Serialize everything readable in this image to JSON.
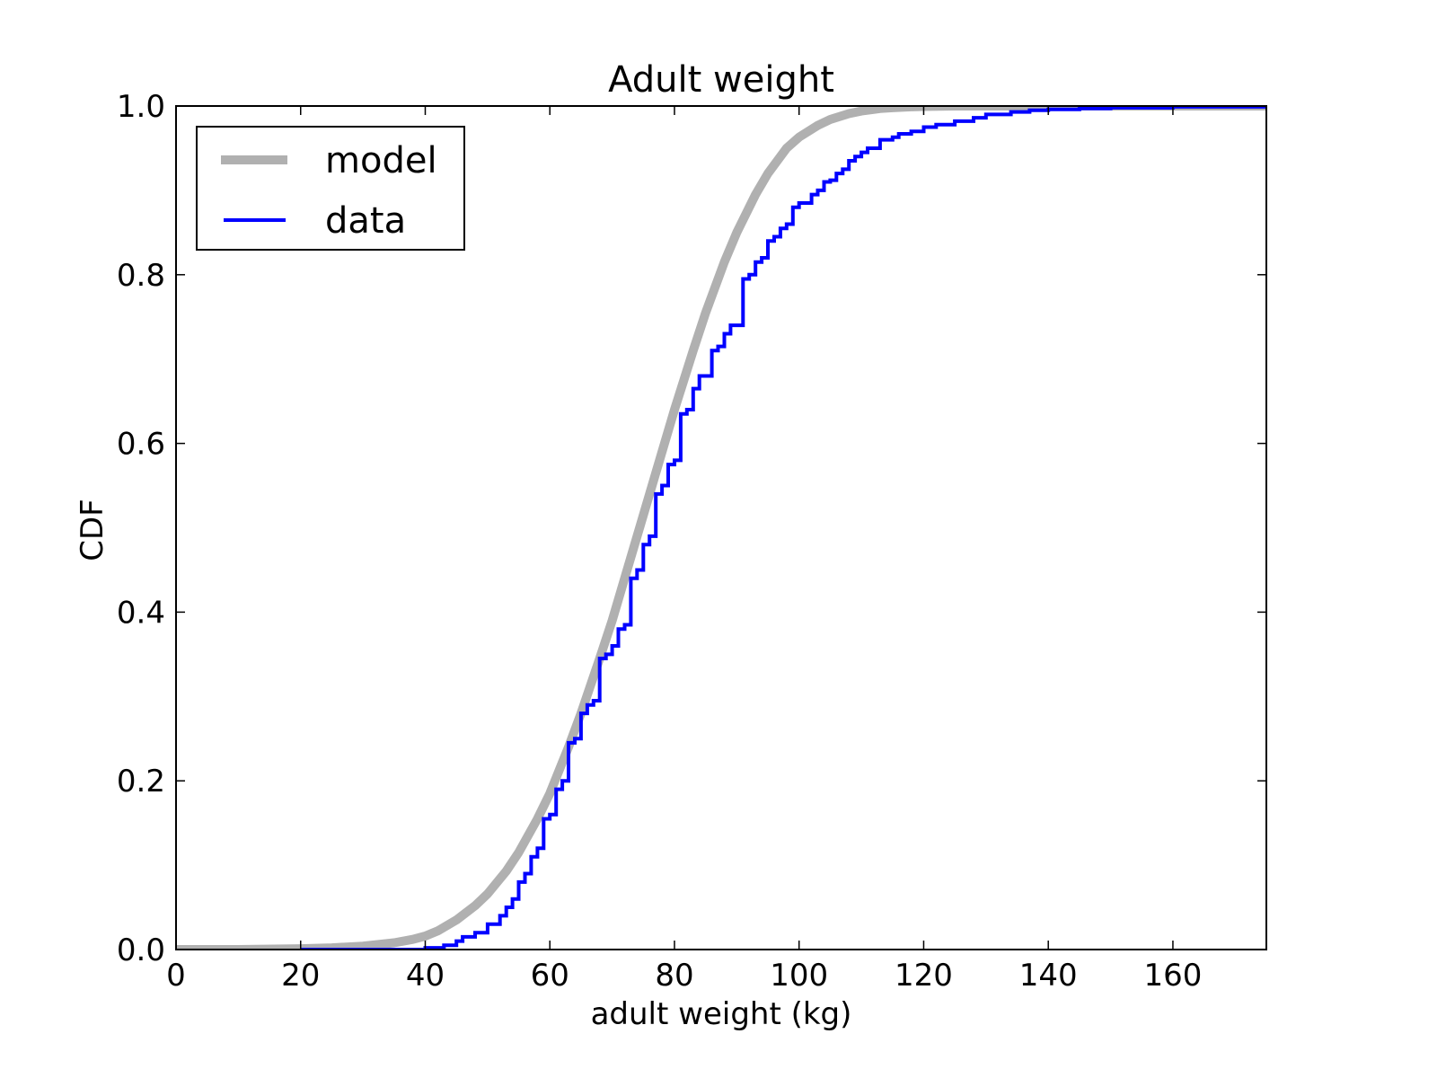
{
  "chart_data": {
    "type": "line",
    "title": "Adult weight",
    "xlabel": "adult weight (kg)",
    "ylabel": "CDF",
    "xlim": [
      0,
      175
    ],
    "ylim": [
      0.0,
      1.0
    ],
    "xticks": [
      0,
      20,
      40,
      60,
      80,
      100,
      120,
      140,
      160
    ],
    "xtick_labels": [
      "0",
      "20",
      "40",
      "60",
      "80",
      "100",
      "120",
      "140",
      "160"
    ],
    "yticks": [
      0.0,
      0.2,
      0.4,
      0.6,
      0.8,
      1.0
    ],
    "ytick_labels": [
      "0.0",
      "0.2",
      "0.4",
      "0.6",
      "0.8",
      "1.0"
    ],
    "grid": false,
    "legend_position": "upper left",
    "series": [
      {
        "name": "model",
        "color": "#b0b0b0",
        "linewidth": 10,
        "style": "smooth",
        "x": [
          0,
          10,
          20,
          25,
          30,
          35,
          38,
          40,
          42,
          45,
          48,
          50,
          53,
          55,
          58,
          60,
          63,
          65,
          68,
          70,
          73,
          75,
          78,
          80,
          83,
          85,
          88,
          90,
          93,
          95,
          98,
          100,
          103,
          105,
          108,
          110,
          113,
          115,
          118,
          120,
          125,
          130,
          140,
          150,
          175
        ],
        "y": [
          0.0,
          0.0,
          0.001,
          0.002,
          0.004,
          0.008,
          0.012,
          0.016,
          0.022,
          0.035,
          0.052,
          0.066,
          0.093,
          0.115,
          0.155,
          0.185,
          0.24,
          0.28,
          0.345,
          0.39,
          0.465,
          0.515,
          0.59,
          0.64,
          0.71,
          0.755,
          0.815,
          0.85,
          0.895,
          0.92,
          0.95,
          0.963,
          0.977,
          0.984,
          0.991,
          0.994,
          0.997,
          0.998,
          0.999,
          0.9995,
          1.0,
          1.0,
          1.0,
          1.0,
          1.0
        ]
      },
      {
        "name": "data",
        "color": "#0000ff",
        "linewidth": 4,
        "style": "step",
        "x": [
          20,
          40,
          43,
          45,
          46,
          48,
          50,
          52,
          53,
          54,
          55,
          56,
          57,
          58,
          59,
          60,
          61,
          62,
          63,
          64,
          65,
          66,
          67,
          68,
          69,
          70,
          71,
          72,
          73,
          74,
          75,
          76,
          77,
          78,
          79,
          80,
          81,
          82,
          83,
          84,
          86,
          87,
          88,
          89,
          91,
          92,
          93,
          94,
          95,
          96,
          97,
          98,
          99,
          100,
          102,
          103,
          104,
          105,
          106,
          107,
          108,
          109,
          110,
          111,
          113,
          115,
          116,
          118,
          120,
          122,
          125,
          128,
          130,
          134,
          137,
          140,
          145,
          150,
          160,
          175
        ],
        "y": [
          0.0,
          0.002,
          0.005,
          0.01,
          0.015,
          0.02,
          0.03,
          0.04,
          0.05,
          0.06,
          0.08,
          0.09,
          0.11,
          0.12,
          0.155,
          0.16,
          0.19,
          0.2,
          0.245,
          0.25,
          0.28,
          0.29,
          0.295,
          0.345,
          0.35,
          0.36,
          0.38,
          0.385,
          0.44,
          0.45,
          0.48,
          0.49,
          0.54,
          0.55,
          0.575,
          0.58,
          0.635,
          0.64,
          0.665,
          0.68,
          0.71,
          0.715,
          0.73,
          0.74,
          0.795,
          0.8,
          0.815,
          0.82,
          0.84,
          0.845,
          0.855,
          0.86,
          0.88,
          0.885,
          0.895,
          0.9,
          0.91,
          0.912,
          0.92,
          0.925,
          0.935,
          0.94,
          0.945,
          0.95,
          0.96,
          0.963,
          0.967,
          0.97,
          0.975,
          0.978,
          0.982,
          0.986,
          0.99,
          0.993,
          0.995,
          0.996,
          0.997,
          0.998,
          0.999,
          1.0
        ]
      }
    ]
  },
  "legend": {
    "items": [
      {
        "label": "model",
        "color": "#b0b0b0"
      },
      {
        "label": "data",
        "color": "#0000ff"
      }
    ]
  }
}
